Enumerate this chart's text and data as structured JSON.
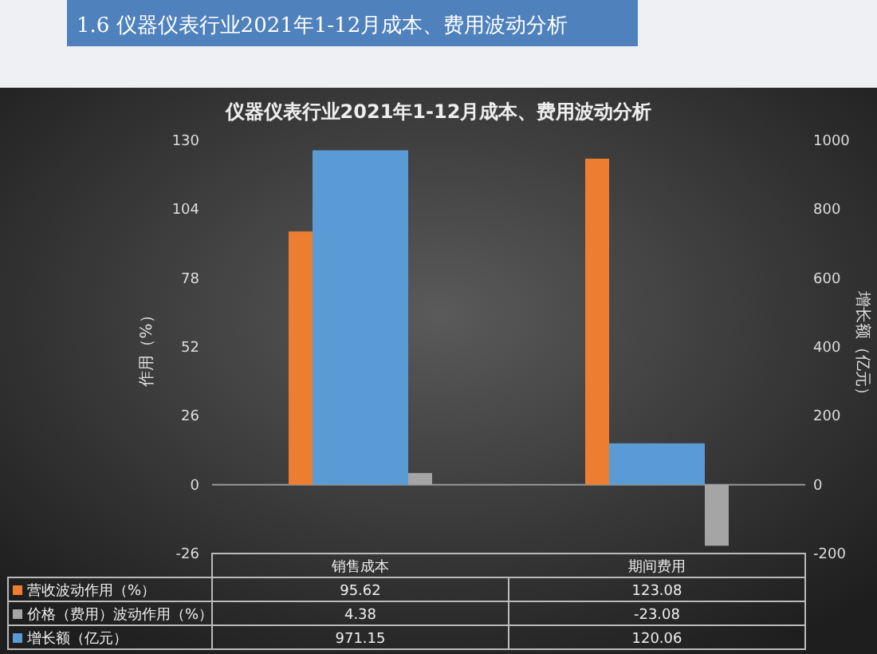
{
  "chart_data": {
    "type": "bar",
    "title": "1.6 仪器仪表行业2021年1-12月成本、费用波动分析",
    "subtitle": "仪器仪表行业2021年1-12月成本、费用波动分析",
    "ylabel": "作用（%）",
    "y2label": "增长额（亿元）",
    "categories": [
      "销售成本",
      "期间费用"
    ],
    "series": [
      {
        "name": "营收波动作用（%）",
        "color": "#ed7d31",
        "values": [
          95.62,
          123.08
        ]
      },
      {
        "name": "价格（费用）波动作用（%）",
        "color": "#a5a5a5",
        "values": [
          4.38,
          -23.08
        ]
      },
      {
        "name": "增长额（亿元）",
        "color": "#5b9bd5",
        "values": [
          971.15,
          120.06
        ],
        "axis": "y2"
      }
    ],
    "ylim": [
      -26,
      130
    ],
    "yticks": [
      -26,
      0,
      26,
      52,
      78,
      104,
      130
    ],
    "y2lim": [
      -200,
      1000
    ],
    "y2ticks": [
      -200,
      0,
      200,
      400,
      600,
      800,
      1000
    ],
    "data_labels": true,
    "legend": "bottom"
  }
}
